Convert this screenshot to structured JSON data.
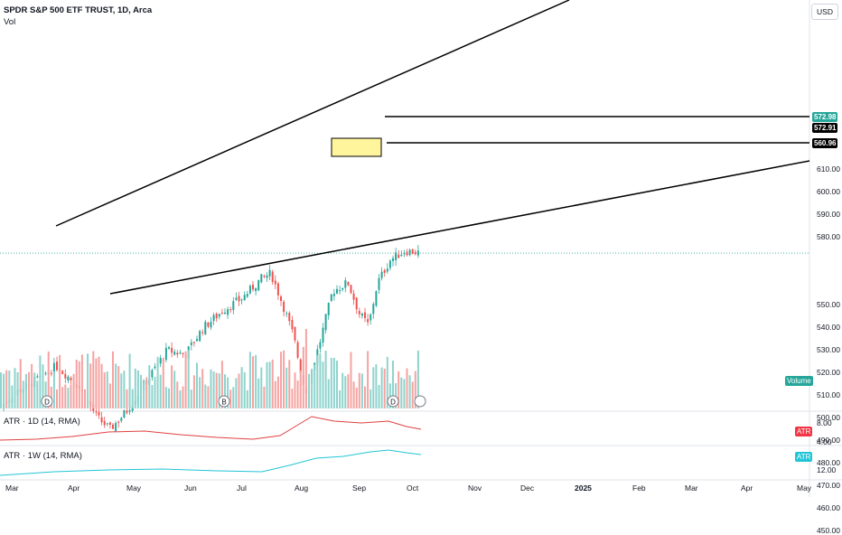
{
  "header": {
    "title": "SPDR S&P 500 ETF TRUST, 1D, Arca",
    "volume_label": "Vol"
  },
  "currency_button": "USD",
  "price_axis": {
    "ticks": [
      "610.00",
      "600.00",
      "590.00",
      "580.00",
      "550.00",
      "540.00",
      "530.00",
      "520.00",
      "510.00",
      "500.00",
      "490.00",
      "480.00",
      "470.00",
      "460.00",
      "450.00"
    ]
  },
  "price_tags": {
    "last": {
      "label": "572.98",
      "color": "#26a69a"
    },
    "prev": {
      "label": "572.91",
      "color": "#000000"
    },
    "level": {
      "label": "560.96",
      "color": "#000000"
    }
  },
  "volume_tag": {
    "label": "Volume",
    "color": "#26a69a"
  },
  "atr1": {
    "title": "ATR · 1D (14, RMA)",
    "badge": "ATR",
    "badge_color": "#f23645",
    "line_color": "#e04040",
    "ticks": [
      "8.00",
      "4.00"
    ]
  },
  "atr2": {
    "title": "ATR · 1W (14, RMA)",
    "badge": "ATR",
    "badge_color": "#22c5d6",
    "line_color": "#22c5d6",
    "ticks": [
      "12.00"
    ]
  },
  "time_axis": {
    "labels": [
      "Mar",
      "Apr",
      "May",
      "Jun",
      "Jul",
      "Aug",
      "Sep",
      "Oct",
      "Nov",
      "Dec",
      "2025",
      "Feb",
      "Mar",
      "Apr",
      "May"
    ]
  },
  "markers": {
    "dividend": "D",
    "earnings": "B"
  },
  "chart_data": {
    "type": "candlestick",
    "title": "SPDR S&P 500 ETF TRUST, 1D, Arca",
    "ylim": [
      445,
      618
    ],
    "x": [
      "Feb",
      "Mar",
      "Apr",
      "May",
      "Jun",
      "Jul",
      "Aug",
      "Sep",
      "Oct"
    ],
    "close_path": [
      {
        "x": "Feb",
        "y": 505
      },
      {
        "x": "Mar",
        "y": 512
      },
      {
        "x": "Mar",
        "y": 520
      },
      {
        "x": "Apr",
        "y": 523
      },
      {
        "x": "Apr",
        "y": 505
      },
      {
        "x": "Apr",
        "y": 495
      },
      {
        "x": "May",
        "y": 503
      },
      {
        "x": "May",
        "y": 517
      },
      {
        "x": "May",
        "y": 530
      },
      {
        "x": "Jun",
        "y": 528
      },
      {
        "x": "Jun",
        "y": 545
      },
      {
        "x": "Jul",
        "y": 555
      },
      {
        "x": "Jul",
        "y": 565
      },
      {
        "x": "Jul",
        "y": 555
      },
      {
        "x": "Aug",
        "y": 540
      },
      {
        "x": "Aug",
        "y": 511
      },
      {
        "x": "Aug",
        "y": 535
      },
      {
        "x": "Aug",
        "y": 556
      },
      {
        "x": "Sep",
        "y": 560
      },
      {
        "x": "Sep",
        "y": 541
      },
      {
        "x": "Sep",
        "y": 562
      },
      {
        "x": "Oct",
        "y": 572
      },
      {
        "x": "Oct",
        "y": 572.98
      }
    ],
    "levels": [
      {
        "label": "572.98",
        "y": 572.98
      },
      {
        "label": "560.96",
        "y": 560.96
      }
    ],
    "volume_ylim": [
      0,
      100
    ],
    "atr_1d_ylim": [
      2,
      10
    ],
    "atr_1w_ylim": [
      8,
      18
    ]
  }
}
